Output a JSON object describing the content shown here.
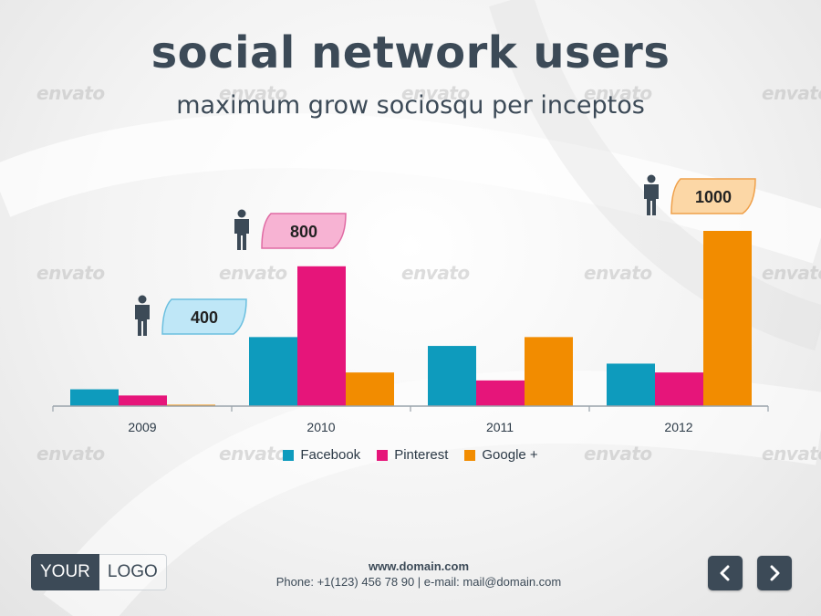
{
  "header": {
    "title": "social network users",
    "subtitle": "maximum grow sociosqu per inceptos"
  },
  "watermark_text": "envato",
  "chart_data": {
    "type": "bar",
    "categories": [
      "2009",
      "2010",
      "2011",
      "2012"
    ],
    "series": [
      {
        "name": "Facebook",
        "color": "#0e9bbd",
        "values": [
          190,
          780,
          680,
          480
        ]
      },
      {
        "name": "Pinterest",
        "color": "#e6157a",
        "values": [
          120,
          1580,
          290,
          380
        ]
      },
      {
        "name": "Google +",
        "color": "#f28c00",
        "values": [
          10,
          380,
          780,
          1980
        ]
      }
    ],
    "ylim": [
      0,
      2050
    ],
    "grid": false,
    "legend_position": "bottom",
    "callouts": [
      {
        "category": "2009",
        "label": "400",
        "color": "#bfe7f7",
        "border": "#6bbfdf"
      },
      {
        "category": "2010",
        "label": "800",
        "color": "#f7b3d3",
        "border": "#e06aa3"
      },
      {
        "category": "2012",
        "label": "1000",
        "color": "#fcd7a6",
        "border": "#efa04a"
      }
    ]
  },
  "footer": {
    "logo_your": "YOUR",
    "logo_logo": "LOGO",
    "domain": "www.domain.com",
    "contact": "Phone: +1(123) 456 78 90 | e-mail: mail@domain.com"
  },
  "colors": {
    "dark": "#3c4a57",
    "axis": "#9aa3ab"
  }
}
